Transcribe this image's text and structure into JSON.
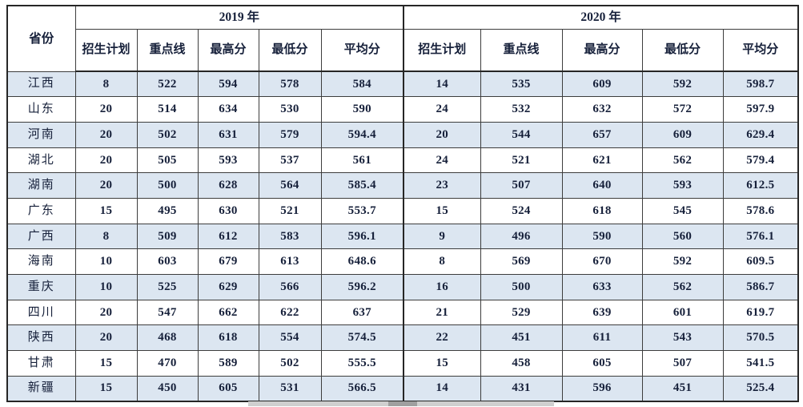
{
  "table": {
    "corner_label": "省份",
    "groups": [
      {
        "label": "2019 年",
        "cols": [
          "招生计划",
          "重点线",
          "最高分",
          "最低分",
          "平均分"
        ]
      },
      {
        "label": "2020 年",
        "cols": [
          "招生计划",
          "重点线",
          "最高分",
          "最低分",
          "平均分"
        ]
      }
    ],
    "rows": [
      {
        "province": "江西",
        "y2019": [
          "8",
          "522",
          "594",
          "578",
          "584"
        ],
        "y2020": [
          "14",
          "535",
          "609",
          "592",
          "598.7"
        ]
      },
      {
        "province": "山东",
        "y2019": [
          "20",
          "514",
          "634",
          "530",
          "590"
        ],
        "y2020": [
          "24",
          "532",
          "632",
          "572",
          "597.9"
        ]
      },
      {
        "province": "河南",
        "y2019": [
          "20",
          "502",
          "631",
          "579",
          "594.4"
        ],
        "y2020": [
          "20",
          "544",
          "657",
          "609",
          "629.4"
        ]
      },
      {
        "province": "湖北",
        "y2019": [
          "20",
          "505",
          "593",
          "537",
          "561"
        ],
        "y2020": [
          "24",
          "521",
          "621",
          "562",
          "579.4"
        ]
      },
      {
        "province": "湖南",
        "y2019": [
          "20",
          "500",
          "628",
          "564",
          "585.4"
        ],
        "y2020": [
          "23",
          "507",
          "640",
          "593",
          "612.5"
        ]
      },
      {
        "province": "广东",
        "y2019": [
          "15",
          "495",
          "630",
          "521",
          "553.7"
        ],
        "y2020": [
          "15",
          "524",
          "618",
          "545",
          "578.6"
        ]
      },
      {
        "province": "广西",
        "y2019": [
          "8",
          "509",
          "612",
          "583",
          "596.1"
        ],
        "y2020": [
          "9",
          "496",
          "590",
          "560",
          "576.1"
        ]
      },
      {
        "province": "海南",
        "y2019": [
          "10",
          "603",
          "679",
          "613",
          "648.6"
        ],
        "y2020": [
          "8",
          "569",
          "670",
          "592",
          "609.5"
        ]
      },
      {
        "province": "重庆",
        "y2019": [
          "10",
          "525",
          "629",
          "566",
          "596.2"
        ],
        "y2020": [
          "16",
          "500",
          "633",
          "562",
          "586.7"
        ]
      },
      {
        "province": "四川",
        "y2019": [
          "20",
          "547",
          "662",
          "622",
          "637"
        ],
        "y2020": [
          "21",
          "529",
          "639",
          "601",
          "619.7"
        ]
      },
      {
        "province": "陕西",
        "y2019": [
          "20",
          "468",
          "618",
          "554",
          "574.5"
        ],
        "y2020": [
          "22",
          "451",
          "611",
          "543",
          "570.5"
        ]
      },
      {
        "province": "甘肃",
        "y2019": [
          "15",
          "470",
          "589",
          "502",
          "555.5"
        ],
        "y2020": [
          "15",
          "458",
          "605",
          "507",
          "541.5"
        ]
      },
      {
        "province": "新疆",
        "y2019": [
          "15",
          "450",
          "605",
          "531",
          "566.5"
        ],
        "y2020": [
          "14",
          "431",
          "596",
          "451",
          "525.4"
        ]
      }
    ],
    "shaded_row_color": "#dce6f1",
    "border_color": "#262626"
  }
}
